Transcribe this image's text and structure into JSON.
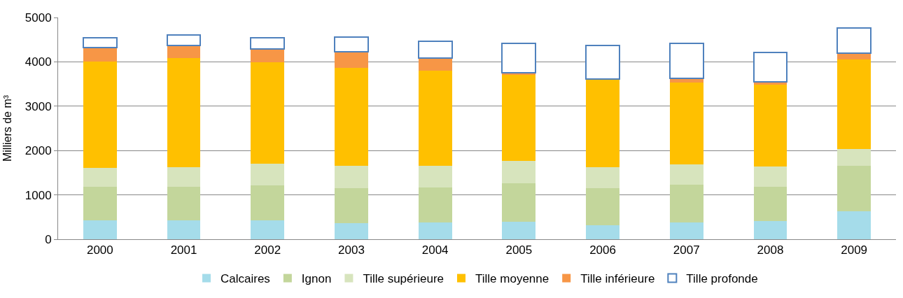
{
  "chart_data": {
    "type": "bar",
    "stacked": true,
    "ylabel": "Milliers de m³",
    "categories": [
      "2000",
      "2001",
      "2002",
      "2003",
      "2004",
      "2005",
      "2006",
      "2007",
      "2008",
      "2009"
    ],
    "series": [
      {
        "name": "Calcaires",
        "color": "#a5dcea",
        "values": [
          420,
          430,
          420,
          370,
          380,
          400,
          320,
          380,
          410,
          630
        ]
      },
      {
        "name": "Ignon",
        "color": "#c3d69b",
        "values": [
          760,
          760,
          800,
          780,
          790,
          860,
          830,
          850,
          770,
          1030
        ]
      },
      {
        "name": "Tille supérieure",
        "color": "#d7e4bd",
        "values": [
          430,
          430,
          490,
          510,
          480,
          500,
          480,
          450,
          460,
          380
        ]
      },
      {
        "name": "Tille moyenne",
        "color": "#ffc000",
        "values": [
          2390,
          2460,
          2280,
          2210,
          2150,
          1950,
          1980,
          1850,
          1840,
          2020
        ]
      },
      {
        "name": "Tille inférieure",
        "color": "#f79646",
        "values": [
          320,
          290,
          300,
          350,
          290,
          40,
          0,
          90,
          70,
          130
        ]
      },
      {
        "name": "Tille profonde",
        "color": "#4f81bd",
        "values": [
          230,
          230,
          260,
          340,
          380,
          660,
          760,
          790,
          660,
          580
        ]
      }
    ],
    "ylim": [
      0,
      5000
    ],
    "yticks": [
      0,
      1000,
      2000,
      3000,
      4000,
      5000
    ],
    "grid": "y",
    "legend": "bottom"
  }
}
